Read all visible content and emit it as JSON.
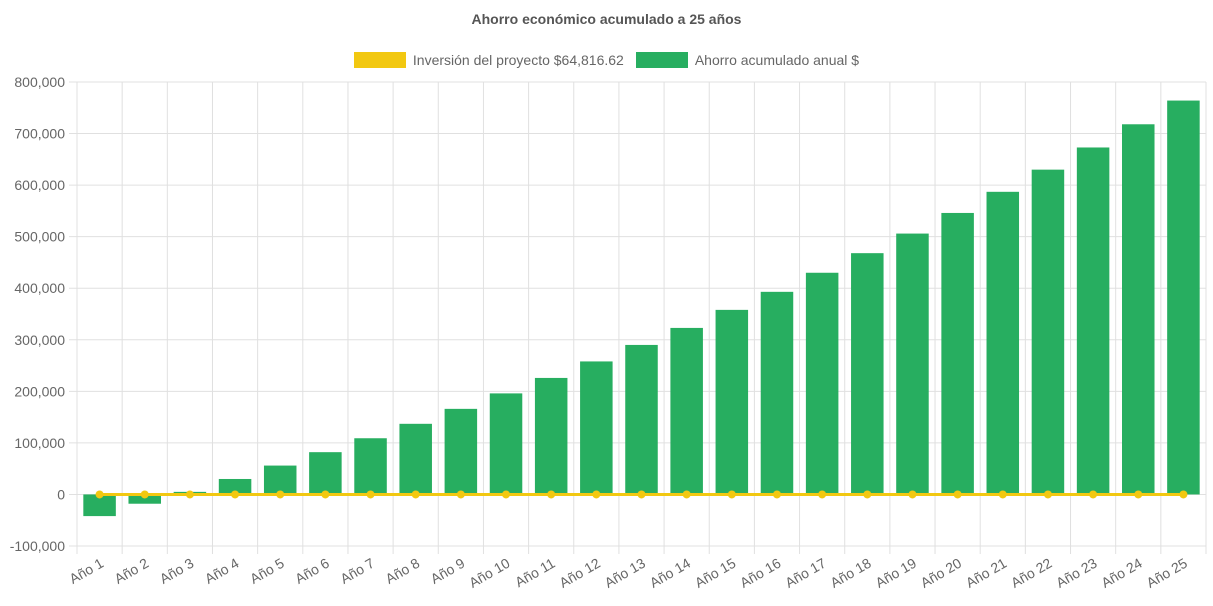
{
  "chart_data": {
    "type": "bar",
    "title": "Ahorro económico acumulado a 25 años",
    "categories": [
      "Año 1",
      "Año 2",
      "Año 3",
      "Año 4",
      "Año 5",
      "Año 6",
      "Año 7",
      "Año 8",
      "Año 9",
      "Año 10",
      "Año 11",
      "Año 12",
      "Año 13",
      "Año 14",
      "Año 15",
      "Año 16",
      "Año 17",
      "Año 18",
      "Año 19",
      "Año 20",
      "Año 21",
      "Año 22",
      "Año 23",
      "Año 24",
      "Año 25"
    ],
    "series": [
      {
        "name": "Inversión del proyecto $64,816.62",
        "type": "line",
        "color": "#f2c811",
        "values": [
          0,
          0,
          0,
          0,
          0,
          0,
          0,
          0,
          0,
          0,
          0,
          0,
          0,
          0,
          0,
          0,
          0,
          0,
          0,
          0,
          0,
          0,
          0,
          0,
          0
        ]
      },
      {
        "name": "Ahorro acumulado anual $",
        "type": "bar",
        "color": "#27ae60",
        "values": [
          -42000,
          -18000,
          5000,
          30000,
          56000,
          82000,
          109000,
          137000,
          166000,
          196000,
          226000,
          258000,
          290000,
          323000,
          358000,
          393000,
          430000,
          468000,
          506000,
          546000,
          587000,
          630000,
          673000,
          718000,
          764000
        ]
      }
    ],
    "yticks": [
      "800,000",
      "700,000",
      "600,000",
      "500,000",
      "400,000",
      "300,000",
      "200,000",
      "100,000",
      "0",
      "-100,000"
    ],
    "ylim": [
      -100000,
      800000
    ],
    "xlabel": "",
    "ylabel": "",
    "grid": true,
    "legend_position": "top"
  }
}
